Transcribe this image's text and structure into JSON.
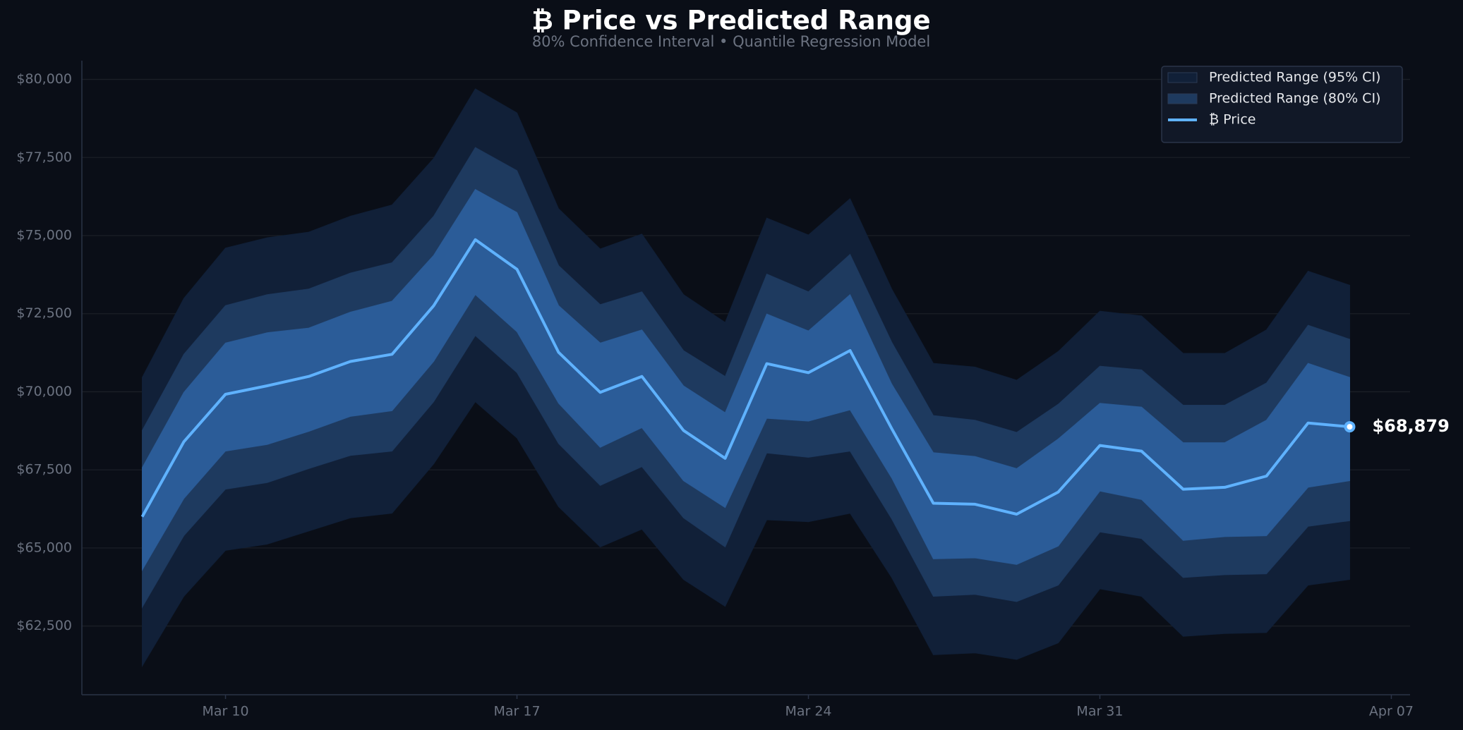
{
  "chart_data": {
    "type": "band",
    "title": "₿ Price vs Predicted Range",
    "subtitle": "80% Confidence Interval  •  Quantile Regression Model",
    "x": [
      "Mar 08",
      "Mar 09",
      "Mar 10",
      "Mar 11",
      "Mar 12",
      "Mar 13",
      "Mar 14",
      "Mar 15",
      "Mar 16",
      "Mar 17",
      "Mar 18",
      "Mar 19",
      "Mar 20",
      "Mar 21",
      "Mar 22",
      "Mar 23",
      "Mar 24",
      "Mar 25",
      "Mar 26",
      "Mar 27",
      "Mar 28",
      "Mar 29",
      "Mar 30",
      "Mar 31",
      "Apr 01",
      "Apr 02",
      "Apr 03",
      "Apr 04",
      "Apr 05",
      "Apr 06"
    ],
    "xticks": [
      "Mar 10",
      "Mar 17",
      "Mar 24",
      "Mar 31",
      "Apr 07"
    ],
    "ylim": [
      60300,
      80600
    ],
    "yticks": [
      {
        "value": 62500,
        "label": "$62,500"
      },
      {
        "value": 65000,
        "label": "$65,000"
      },
      {
        "value": 67500,
        "label": "$67,500"
      },
      {
        "value": 70000,
        "label": "$70,000"
      },
      {
        "value": 72500,
        "label": "$72,500"
      },
      {
        "value": 75000,
        "label": "$75,000"
      },
      {
        "value": 77500,
        "label": "$77,500"
      },
      {
        "value": 80000,
        "label": "$80,000"
      }
    ],
    "grid": true,
    "legend": "upper right",
    "series": [
      {
        "name": "Predicted Range (95% CI)",
        "color": "#112038",
        "lower": [
          61220,
          63450,
          64920,
          65120,
          65540,
          65960,
          66110,
          67690,
          69680,
          68520,
          66320,
          65030,
          65600,
          63990,
          63130,
          65900,
          65840,
          66110,
          64050,
          61580,
          61640,
          61430,
          61960,
          63690,
          63450,
          62170,
          62260,
          62290,
          63810,
          63990
        ],
        "upper": [
          70460,
          72990,
          74600,
          74930,
          75110,
          75620,
          75980,
          77470,
          79700,
          78930,
          75860,
          74570,
          75050,
          73110,
          72220,
          75560,
          75020,
          76180,
          73290,
          70910,
          70790,
          70370,
          71290,
          72580,
          72430,
          71230,
          71230,
          71980,
          73860,
          73410
        ]
      },
      {
        "name": "Predicted Range (80% CI)",
        "color": "#1e3a5f",
        "lower": [
          63100,
          65390,
          66880,
          67090,
          67540,
          67960,
          68100,
          69680,
          71800,
          70610,
          68340,
          67000,
          67600,
          65960,
          65030,
          68040,
          67900,
          68100,
          65930,
          63450,
          63510,
          63280,
          63810,
          65510,
          65300,
          64050,
          64140,
          64170,
          65690,
          65870
        ],
        "upper": [
          68760,
          71200,
          72760,
          73110,
          73290,
          73800,
          74130,
          75620,
          77820,
          77080,
          74040,
          72790,
          73200,
          71320,
          70490,
          73770,
          73200,
          74400,
          71590,
          69240,
          69090,
          68700,
          69600,
          70820,
          70700,
          69570,
          69570,
          70280,
          72130,
          71680
        ]
      },
      {
        "color": "#2b5c98",
        "lower": [
          64290,
          66580,
          68100,
          68310,
          68730,
          69210,
          69390,
          70970,
          73110,
          71920,
          69630,
          68220,
          68850,
          67150,
          66290,
          69150,
          69060,
          69420,
          67240,
          64650,
          64680,
          64470,
          65060,
          66820,
          66550,
          65240,
          65360,
          65390,
          66940,
          67150
        ],
        "upper": [
          67570,
          69980,
          71560,
          71890,
          72040,
          72550,
          72900,
          74370,
          76480,
          75740,
          72760,
          71560,
          71980,
          70190,
          69330,
          72490,
          71950,
          73110,
          70250,
          68050,
          67930,
          67540,
          68490,
          69630,
          69510,
          68370,
          68370,
          69090,
          70910,
          70460
        ]
      },
      {
        "name": "₿ Price",
        "color": "#5fb2ff",
        "values": [
          66000,
          68400,
          69920,
          70190,
          70490,
          70970,
          71200,
          72755,
          74870,
          73920,
          71260,
          69980,
          70490,
          68760,
          67870,
          70900,
          70610,
          71320,
          68820,
          66430,
          66400,
          66080,
          66790,
          68280,
          68100,
          66880,
          66940,
          67300,
          69000,
          68879
        ],
        "value_labels": [
          null,
          null,
          null,
          null,
          null,
          null,
          null,
          null,
          null,
          null,
          null,
          null,
          null,
          null,
          null,
          null,
          null,
          null,
          null,
          null,
          null,
          null,
          null,
          null,
          null,
          null,
          null,
          null,
          null,
          "$68,879"
        ]
      }
    ]
  }
}
